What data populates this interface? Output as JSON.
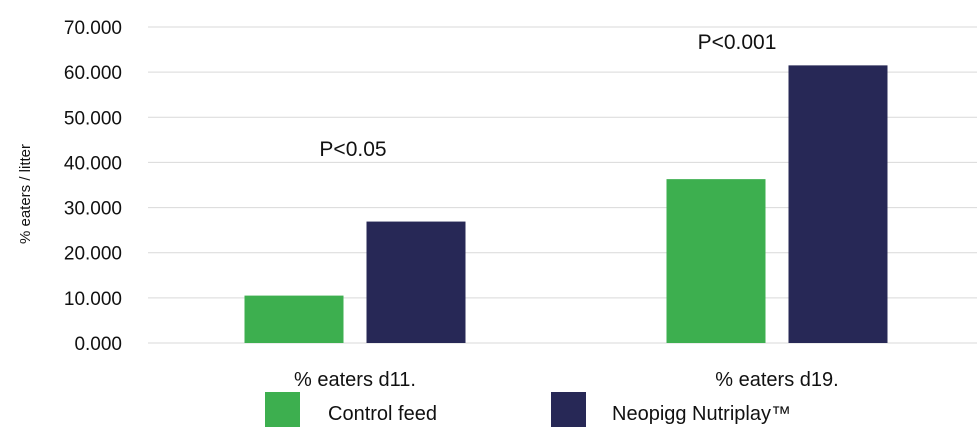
{
  "chart_data": {
    "type": "bar",
    "ylabel": "% eaters / litter",
    "ylim": [
      0,
      70
    ],
    "yticks": [
      "0.000",
      "10.000",
      "20.000",
      "30.000",
      "40.000",
      "50.000",
      "60.000",
      "70.000"
    ],
    "grid": true,
    "legend_position": "bottom",
    "categories": [
      "% eaters d11.",
      "% eaters d19."
    ],
    "series": [
      {
        "name": "Control feed",
        "color": "#3daf4f",
        "values": [
          10.5,
          36.3
        ]
      },
      {
        "name": "Neopigg Nutriplay™",
        "color": "#272856",
        "values": [
          26.9,
          61.5
        ]
      }
    ],
    "annotations": [
      "P<0.05",
      "P<0.001"
    ]
  }
}
